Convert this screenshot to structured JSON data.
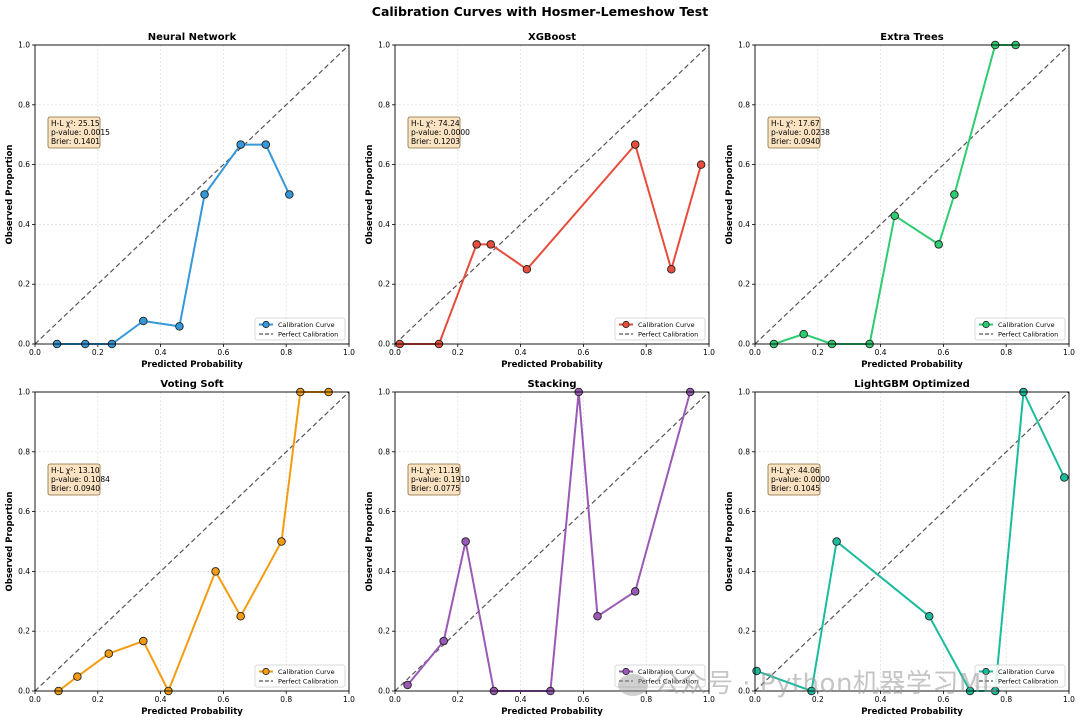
{
  "figure": {
    "title": "Calibration Curves with Hosmer-Lemeshow Test",
    "watermark": "公众号 · Python机器学习ML"
  },
  "colors": {
    "perfect": "#555555",
    "stat_box_fill": "#fae3c2",
    "stat_box_edge": "#8b6b3a"
  },
  "chart_data": [
    {
      "type": "line",
      "title": "Neural Network",
      "xlabel": "Predicted Probability",
      "ylabel": "Observed Proportion",
      "xlim": [
        0,
        1
      ],
      "ylim": [
        0,
        1
      ],
      "xticks": [
        "0.0",
        "0.2",
        "0.4",
        "0.6",
        "0.8",
        "1.0"
      ],
      "yticks": [
        "0.0",
        "0.2",
        "0.4",
        "0.6",
        "0.8",
        "1.0"
      ],
      "grid": true,
      "legend_position": "lower-right",
      "color": "#3498db",
      "series": [
        {
          "name": "Calibration Curve",
          "x": [
            0.07,
            0.16,
            0.245,
            0.345,
            0.46,
            0.54,
            0.655,
            0.735,
            0.81
          ],
          "y": [
            0.0,
            0.0,
            0.0,
            0.077,
            0.059,
            0.5,
            0.667,
            0.667,
            0.5
          ]
        },
        {
          "name": "Perfect Calibration",
          "x": [
            0,
            1
          ],
          "y": [
            0,
            1
          ]
        }
      ],
      "stats": {
        "hl": "H-L χ²: 25.15",
        "p": "p-value: 0.0015",
        "brier": "Brier: 0.1401"
      }
    },
    {
      "type": "line",
      "title": "XGBoost",
      "xlabel": "Predicted Probability",
      "ylabel": "Observed Proportion",
      "xlim": [
        0,
        1
      ],
      "ylim": [
        0,
        1
      ],
      "xticks": [
        "0.0",
        "0.2",
        "0.4",
        "0.6",
        "0.8",
        "1.0"
      ],
      "yticks": [
        "0.0",
        "0.2",
        "0.4",
        "0.6",
        "0.8",
        "1.0"
      ],
      "grid": true,
      "legend_position": "lower-right",
      "color": "#e74c3c",
      "series": [
        {
          "name": "Calibration Curve",
          "x": [
            0.015,
            0.14,
            0.26,
            0.305,
            0.42,
            0.765,
            0.88,
            0.975
          ],
          "y": [
            0.0,
            0.0,
            0.333,
            0.333,
            0.25,
            0.667,
            0.25,
            0.6
          ]
        },
        {
          "name": "Perfect Calibration",
          "x": [
            0,
            1
          ],
          "y": [
            0,
            1
          ]
        }
      ],
      "stats": {
        "hl": "H-L χ²: 74.24",
        "p": "p-value: 0.0000",
        "brier": "Brier: 0.1203"
      }
    },
    {
      "type": "line",
      "title": "Extra Trees",
      "xlabel": "Predicted Probability",
      "ylabel": "Observed Proportion",
      "xlim": [
        0,
        1
      ],
      "ylim": [
        0,
        1
      ],
      "xticks": [
        "0.0",
        "0.2",
        "0.4",
        "0.6",
        "0.8",
        "1.0"
      ],
      "yticks": [
        "0.0",
        "0.2",
        "0.4",
        "0.6",
        "0.8",
        "1.0"
      ],
      "grid": true,
      "legend_position": "lower-right",
      "color": "#2ecc71",
      "series": [
        {
          "name": "Calibration Curve",
          "x": [
            0.06,
            0.155,
            0.245,
            0.365,
            0.445,
            0.585,
            0.635,
            0.765,
            0.83
          ],
          "y": [
            0.0,
            0.033,
            0.0,
            0.0,
            0.429,
            0.333,
            0.5,
            1.0,
            1.0
          ]
        },
        {
          "name": "Perfect Calibration",
          "x": [
            0,
            1
          ],
          "y": [
            0,
            1
          ]
        }
      ],
      "stats": {
        "hl": "H-L χ²: 17.67",
        "p": "p-value: 0.0238",
        "brier": "Brier: 0.0940"
      }
    },
    {
      "type": "line",
      "title": "Voting Soft",
      "xlabel": "Predicted Probability",
      "ylabel": "Observed Proportion",
      "xlim": [
        0,
        1
      ],
      "ylim": [
        0,
        1
      ],
      "xticks": [
        "0.0",
        "0.2",
        "0.4",
        "0.6",
        "0.8",
        "1.0"
      ],
      "yticks": [
        "0.0",
        "0.2",
        "0.4",
        "0.6",
        "0.8",
        "1.0"
      ],
      "grid": true,
      "legend_position": "lower-right",
      "color": "#f39c12",
      "series": [
        {
          "name": "Calibration Curve",
          "x": [
            0.075,
            0.135,
            0.235,
            0.345,
            0.425,
            0.575,
            0.655,
            0.785,
            0.845,
            0.935
          ],
          "y": [
            0.0,
            0.048,
            0.125,
            0.167,
            0.0,
            0.4,
            0.25,
            0.5,
            1.0,
            1.0
          ]
        },
        {
          "name": "Perfect Calibration",
          "x": [
            0,
            1
          ],
          "y": [
            0,
            1
          ]
        }
      ],
      "stats": {
        "hl": "H-L χ²: 13.10",
        "p": "p-value: 0.1084",
        "brier": "Brier: 0.0940"
      }
    },
    {
      "type": "line",
      "title": "Stacking",
      "xlabel": "Predicted Probability",
      "ylabel": "Observed Proportion",
      "xlim": [
        0,
        1
      ],
      "ylim": [
        0,
        1
      ],
      "xticks": [
        "0.0",
        "0.2",
        "0.4",
        "0.6",
        "0.8",
        "1.0"
      ],
      "yticks": [
        "0.0",
        "0.2",
        "0.4",
        "0.6",
        "0.8",
        "1.0"
      ],
      "grid": true,
      "legend_position": "lower-right",
      "color": "#9b59b6",
      "series": [
        {
          "name": "Calibration Curve",
          "x": [
            0.04,
            0.155,
            0.225,
            0.315,
            0.495,
            0.585,
            0.645,
            0.765,
            0.94
          ],
          "y": [
            0.02,
            0.167,
            0.5,
            0.0,
            0.0,
            1.0,
            0.25,
            0.333,
            1.0
          ]
        },
        {
          "name": "Perfect Calibration",
          "x": [
            0,
            1
          ],
          "y": [
            0,
            1
          ]
        }
      ],
      "stats": {
        "hl": "H-L χ²: 11.19",
        "p": "p-value: 0.1910",
        "brier": "Brier: 0.0775"
      }
    },
    {
      "type": "line",
      "title": "LightGBM Optimized",
      "xlabel": "Predicted Probability",
      "ylabel": "Observed Proportion",
      "xlim": [
        0,
        1
      ],
      "ylim": [
        0,
        1
      ],
      "xticks": [
        "0.0",
        "0.2",
        "0.4",
        "0.6",
        "0.8",
        "1.0"
      ],
      "yticks": [
        "0.0",
        "0.2",
        "0.4",
        "0.6",
        "0.8",
        "1.0"
      ],
      "grid": true,
      "legend_position": "lower-right",
      "color": "#1abc9c",
      "series": [
        {
          "name": "Calibration Curve",
          "x": [
            0.005,
            0.18,
            0.26,
            0.555,
            0.685,
            0.765,
            0.855,
            0.985
          ],
          "y": [
            0.067,
            0.0,
            0.5,
            0.25,
            0.0,
            0.0,
            1.0,
            0.714
          ]
        },
        {
          "name": "Perfect Calibration",
          "x": [
            0,
            1
          ],
          "y": [
            0,
            1
          ]
        }
      ],
      "stats": {
        "hl": "H-L χ²: 44.06",
        "p": "p-value: 0.0000",
        "brier": "Brier: 0.1045"
      }
    }
  ]
}
